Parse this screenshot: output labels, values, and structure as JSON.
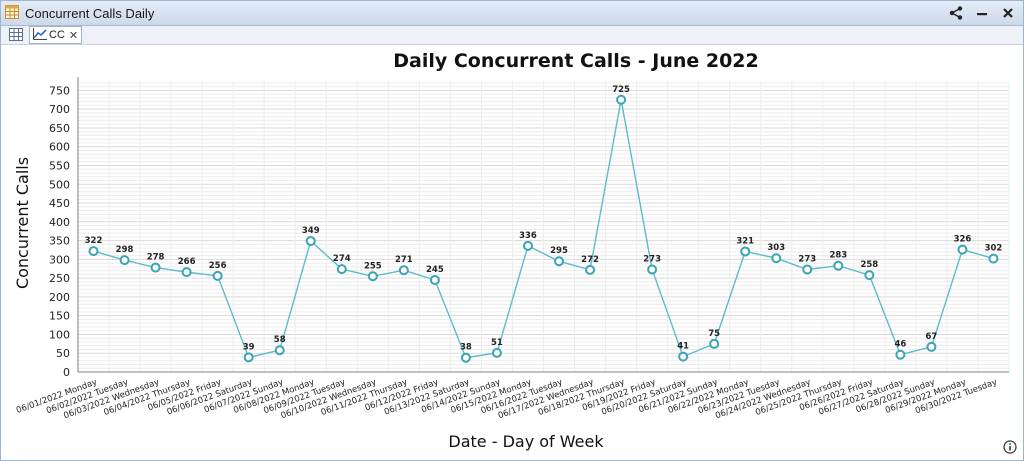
{
  "window": {
    "title": "Concurrent Calls Daily"
  },
  "tabs": [
    {
      "label": "CC"
    }
  ],
  "icons": {
    "app": "table-icon",
    "share": "share-icon",
    "minimize": "minimize-icon",
    "close": "close-icon",
    "grid_tab": "grid-icon",
    "chart_tab": "line-chart-icon",
    "info": "info-icon"
  },
  "colors": {
    "line": "#5bbccc",
    "marker_edge": "#3aa3b5",
    "grid": "#d9d9d9",
    "axis": "#808080",
    "titlebar": "#d6e1f0"
  },
  "chart_data": {
    "type": "line",
    "title": "Daily Concurrent Calls  - June 2022",
    "xlabel": "Date - Day of Week",
    "ylabel": "Concurrent Calls",
    "ylim": [
      0,
      775
    ],
    "yticks": [
      0,
      50,
      100,
      150,
      200,
      250,
      300,
      350,
      400,
      450,
      500,
      550,
      600,
      650,
      700,
      750
    ],
    "grid": true,
    "categories": [
      "06/01/2022 Monday",
      "06/02/2022 Tuesday",
      "06/03/2022 Wednesday",
      "06/04/2022 Thursday",
      "06/05/2022 Friday",
      "06/06/2022 Saturday",
      "06/07/2022 Sunday",
      "06/08/2022 Monday",
      "06/09/2022 Tuesday",
      "06/10/2022 Wednesday",
      "06/11/2022 Thursday",
      "06/12/2022 Friday",
      "06/13/2022 Saturday",
      "06/14/2022 Sunday",
      "06/15/2022 Monday",
      "06/16/2022 Tuesday",
      "06/17/2022 Wednesday",
      "06/18/2022 Thursday",
      "06/19/2022 Friday",
      "06/20/2022 Saturday",
      "06/21/2022 Sunday",
      "06/22/2022 Monday",
      "06/23/2022 Tuesday",
      "06/24/2022 Wednesday",
      "06/25/2022 Thursday",
      "06/26/2022 Friday",
      "06/27/2022 Saturday",
      "06/28/2022 Sunday",
      "06/29/2022 Monday",
      "06/30/2022 Tuesday"
    ],
    "values": [
      322,
      298,
      278,
      266,
      256,
      39,
      58,
      349,
      274,
      255,
      271,
      245,
      38,
      51,
      336,
      295,
      272,
      725,
      273,
      41,
      75,
      321,
      303,
      273,
      283,
      258,
      46,
      67,
      326,
      302
    ]
  }
}
